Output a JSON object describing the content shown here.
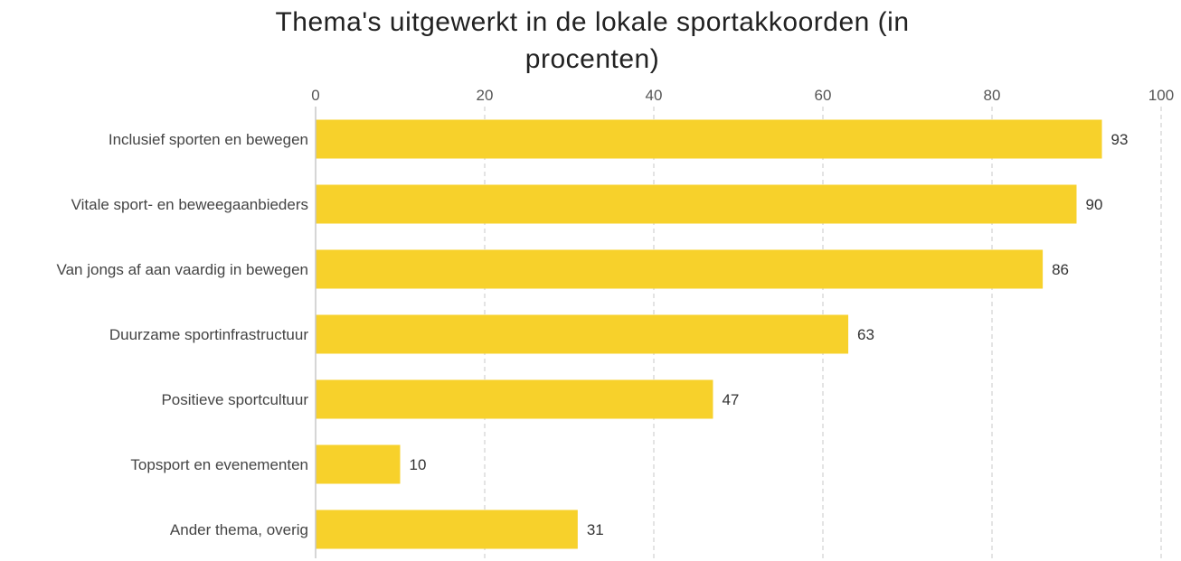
{
  "chart_data": {
    "type": "bar",
    "orientation": "horizontal",
    "title_lines": [
      "Thema's uitgewerkt in de lokale sportakkoorden (in",
      "procenten)"
    ],
    "categories": [
      "Inclusief sporten en bewegen",
      "Vitale sport- en beweegaanbieders",
      "Van jongs af aan vaardig in bewegen",
      "Duurzame sportinfrastructuur",
      "Positieve sportcultuur",
      "Topsport en evenementen",
      "Ander thema, overig"
    ],
    "values": [
      93,
      90,
      86,
      63,
      47,
      10,
      31
    ],
    "xlim": [
      0,
      100
    ],
    "x_ticks": [
      0,
      20,
      40,
      60,
      80,
      100
    ],
    "x_axis_position": "top",
    "grid": "vertical dashed",
    "bar_color": "#F7D12B",
    "data_labels": true
  }
}
